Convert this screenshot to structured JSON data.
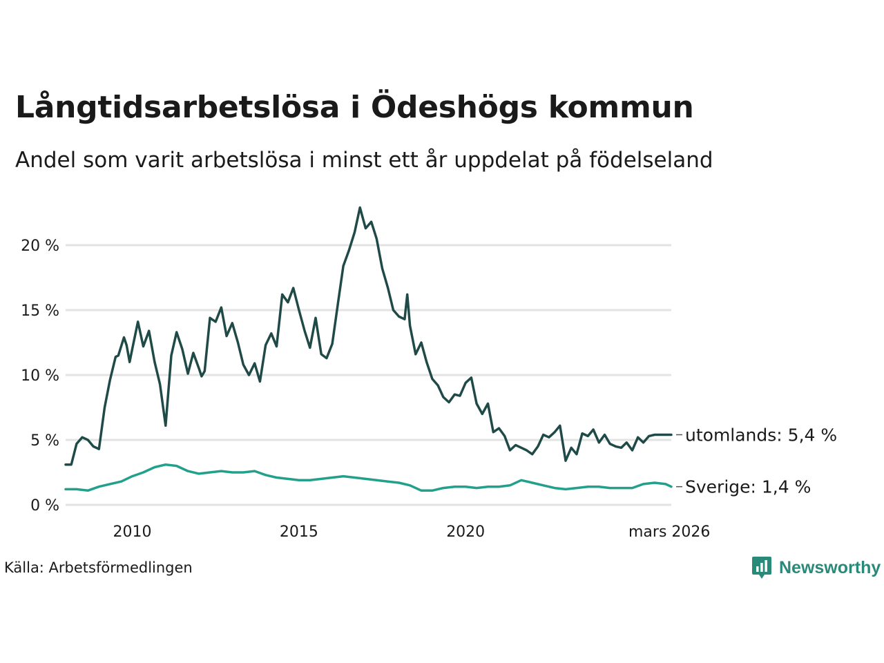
{
  "title": "Långtidsarbetslösa i Ödeshögs kommun",
  "subtitle": "Andel som varit arbetslösa i minst ett år uppdelat på födelseland",
  "source": "Källa: Arbetsförmedlingen",
  "brand": "Newsworthy",
  "colors": {
    "utomlands": "#1f4a47",
    "sverige": "#22a08c",
    "grid": "#e3e3e3",
    "brand": "#2a8a7a"
  },
  "chart_data": {
    "type": "line",
    "title": "Långtidsarbetslösa i Ödeshögs kommun",
    "xlabel": "",
    "ylabel": "",
    "ylim": [
      0,
      23
    ],
    "xlim": [
      2008.0,
      2026.17
    ],
    "y_ticks": [
      0,
      5,
      10,
      15,
      20
    ],
    "y_tick_labels": [
      "0 %",
      "5 %",
      "10 %",
      "15 %",
      "20 %"
    ],
    "x_ticks": [
      2010,
      2015,
      2020,
      2026.17
    ],
    "x_tick_labels": [
      "2010",
      "2015",
      "2020",
      "mars 2026"
    ],
    "series": [
      {
        "name": "utomlands",
        "end_label": "utomlands: 5,4 %",
        "x": [
          2008.0,
          2008.17,
          2008.33,
          2008.5,
          2008.67,
          2008.83,
          2009.0,
          2009.17,
          2009.33,
          2009.5,
          2009.58,
          2009.75,
          2009.83,
          2009.92,
          2010.0,
          2010.17,
          2010.33,
          2010.5,
          2010.67,
          2010.83,
          2011.0,
          2011.17,
          2011.33,
          2011.5,
          2011.58,
          2011.67,
          2011.83,
          2012.0,
          2012.08,
          2012.17,
          2012.33,
          2012.5,
          2012.67,
          2012.83,
          2013.0,
          2013.17,
          2013.33,
          2013.5,
          2013.67,
          2013.83,
          2014.0,
          2014.17,
          2014.33,
          2014.5,
          2014.67,
          2014.83,
          2015.0,
          2015.17,
          2015.33,
          2015.5,
          2015.67,
          2015.83,
          2016.0,
          2016.17,
          2016.33,
          2016.5,
          2016.67,
          2016.83,
          2017.0,
          2017.17,
          2017.33,
          2017.5,
          2017.67,
          2017.83,
          2018.0,
          2018.17,
          2018.25,
          2018.33,
          2018.5,
          2018.67,
          2018.83,
          2019.0,
          2019.17,
          2019.33,
          2019.5,
          2019.67,
          2019.83,
          2020.0,
          2020.17,
          2020.33,
          2020.5,
          2020.67,
          2020.83,
          2021.0,
          2021.17,
          2021.33,
          2021.5,
          2021.67,
          2021.83,
          2022.0,
          2022.17,
          2022.33,
          2022.5,
          2022.67,
          2022.83,
          2023.0,
          2023.17,
          2023.33,
          2023.5,
          2023.67,
          2023.83,
          2024.0,
          2024.17,
          2024.33,
          2024.5,
          2024.67,
          2024.83,
          2025.0,
          2025.17,
          2025.33,
          2025.5,
          2025.67,
          2025.83,
          2026.0,
          2026.17
        ],
        "values": [
          3.1,
          3.1,
          4.7,
          5.2,
          5.0,
          4.5,
          4.3,
          7.5,
          9.6,
          11.4,
          11.5,
          12.9,
          12.3,
          11.0,
          12.0,
          14.1,
          12.2,
          13.4,
          11.0,
          9.3,
          6.1,
          11.5,
          13.3,
          12.0,
          11.1,
          10.1,
          11.7,
          10.5,
          9.9,
          10.3,
          14.4,
          14.1,
          15.2,
          13.0,
          14.0,
          12.5,
          10.8,
          10.0,
          10.9,
          9.5,
          12.3,
          13.2,
          12.2,
          16.2,
          15.6,
          16.7,
          15.0,
          13.4,
          12.1,
          14.4,
          11.6,
          11.3,
          12.4,
          15.5,
          18.4,
          19.6,
          21.0,
          22.9,
          21.3,
          21.8,
          20.5,
          18.2,
          16.7,
          15.0,
          14.5,
          14.3,
          16.2,
          13.8,
          11.6,
          12.5,
          11.0,
          9.7,
          9.2,
          8.3,
          7.9,
          8.5,
          8.4,
          9.4,
          9.8,
          7.8,
          7.0,
          7.8,
          5.6,
          5.9,
          5.3,
          4.2,
          4.6,
          4.4,
          4.2,
          3.9,
          4.5,
          5.4,
          5.2,
          5.6,
          6.1,
          3.4,
          4.4,
          3.9,
          5.5,
          5.3,
          5.8,
          4.8,
          5.4,
          4.7,
          4.5,
          4.4,
          4.8,
          4.2,
          5.2,
          4.8,
          5.3,
          5.4,
          5.4,
          5.4,
          5.4
        ],
        "color": "#1f4a47"
      },
      {
        "name": "Sverige",
        "end_label": "Sverige: 1,4 %",
        "x": [
          2008.0,
          2008.33,
          2008.67,
          2009.0,
          2009.33,
          2009.67,
          2010.0,
          2010.33,
          2010.67,
          2011.0,
          2011.33,
          2011.67,
          2012.0,
          2012.33,
          2012.67,
          2013.0,
          2013.33,
          2013.67,
          2014.0,
          2014.33,
          2014.67,
          2015.0,
          2015.33,
          2015.67,
          2016.0,
          2016.33,
          2016.67,
          2017.0,
          2017.33,
          2017.67,
          2018.0,
          2018.33,
          2018.67,
          2019.0,
          2019.33,
          2019.67,
          2020.0,
          2020.33,
          2020.67,
          2021.0,
          2021.33,
          2021.67,
          2022.0,
          2022.33,
          2022.67,
          2023.0,
          2023.33,
          2023.67,
          2024.0,
          2024.33,
          2024.67,
          2025.0,
          2025.33,
          2025.67,
          2026.0,
          2026.17
        ],
        "values": [
          1.2,
          1.2,
          1.1,
          1.4,
          1.6,
          1.8,
          2.2,
          2.5,
          2.9,
          3.1,
          3.0,
          2.6,
          2.4,
          2.5,
          2.6,
          2.5,
          2.5,
          2.6,
          2.3,
          2.1,
          2.0,
          1.9,
          1.9,
          2.0,
          2.1,
          2.2,
          2.1,
          2.0,
          1.9,
          1.8,
          1.7,
          1.5,
          1.1,
          1.1,
          1.3,
          1.4,
          1.4,
          1.3,
          1.4,
          1.4,
          1.5,
          1.9,
          1.7,
          1.5,
          1.3,
          1.2,
          1.3,
          1.4,
          1.4,
          1.3,
          1.3,
          1.3,
          1.6,
          1.7,
          1.6,
          1.4
        ],
        "color": "#22a08c"
      }
    ]
  }
}
